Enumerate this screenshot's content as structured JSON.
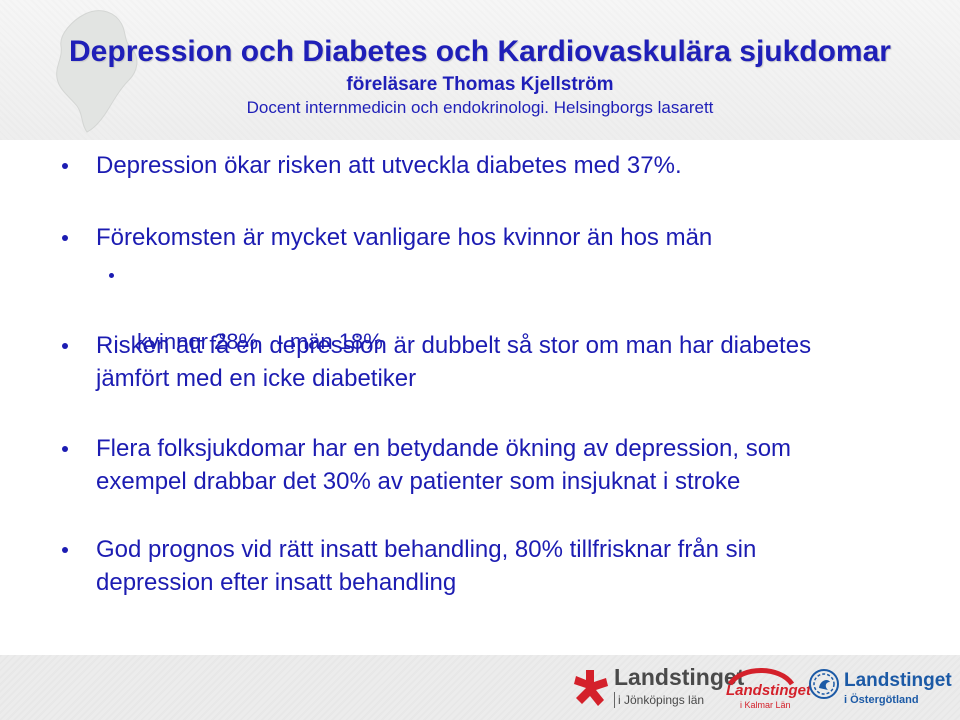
{
  "slide": {
    "title": "Depression och Diabetes och Kardiovaskulära sjukdomar",
    "lecturer": "föreläsare Thomas Kjellström",
    "affiliation": "Docent internmedicin och endokrinologi. Helsingborgs lasarett"
  },
  "bullets": [
    {
      "lines": [
        "Depression ökar risken att utveckla diabetes med 37%."
      ]
    },
    {
      "lines": [
        "Förekomsten är mycket vanligare hos kvinnor än hos män"
      ]
    },
    {
      "lines": [
        "kvinnor 28%   - män 18%"
      ],
      "level": 2
    },
    {
      "lines": [
        "Risken att få en depression är dubbelt så stor om man har diabetes",
        "jämfört med en icke diabetiker"
      ]
    },
    {
      "lines": [
        "Flera folksjukdomar har en betydande ökning av depression, som",
        "exempel drabbar det 30% av patienter som insjuknat i stroke"
      ]
    },
    {
      "lines": [
        "God prognos vid rätt insatt behandling, 80% tillfrisknar från sin",
        "depression efter insatt behandling"
      ]
    }
  ],
  "footer": {
    "logo1": {
      "name": "Landstinget",
      "sub": "i Jönköpings län"
    },
    "logo2": {
      "name": "Landstinget",
      "sub": "i Kalmar Län"
    },
    "logo3": {
      "name": "Landstinget",
      "sub": "i Östergötland"
    }
  },
  "colors": {
    "text": "#1c1cb2",
    "title": "#1f1fb8",
    "jonkoping_red": "#d4212b",
    "ostergotland_blue": "#1c5aa6"
  }
}
